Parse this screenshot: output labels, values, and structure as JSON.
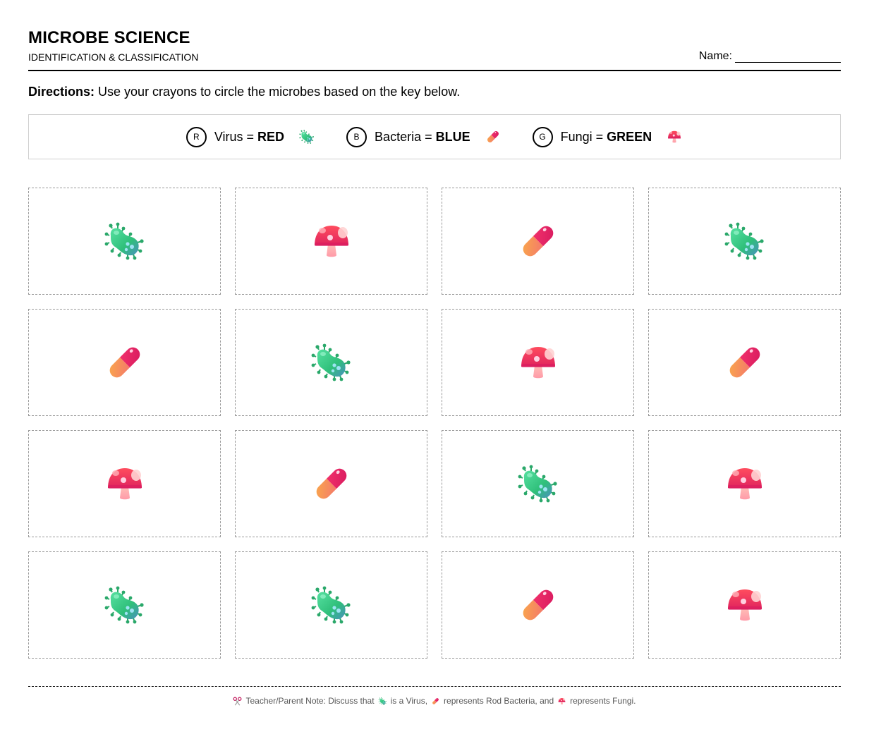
{
  "header": {
    "title": "MICROBE SCIENCE",
    "subtitle": "IDENTIFICATION & CLASSIFICATION",
    "name_label": "Name:"
  },
  "directions": {
    "label": "Directions:",
    "text": " Use your crayons to circle the microbes based on the key below."
  },
  "key": [
    {
      "letter": "R",
      "name": "Virus = ",
      "color_word": "RED",
      "icon": "virus-icon"
    },
    {
      "letter": "B",
      "name": "Bacteria = ",
      "color_word": "BLUE",
      "icon": "bacteria-icon"
    },
    {
      "letter": "G",
      "name": "Fungi = ",
      "color_word": "GREEN",
      "icon": "fungi-icon"
    }
  ],
  "grid": {
    "rows": [
      [
        "virus",
        "fungi",
        "bacteria",
        "virus"
      ],
      [
        "bacteria",
        "virus",
        "fungi",
        "bacteria"
      ],
      [
        "fungi",
        "bacteria",
        "virus",
        "fungi"
      ],
      [
        "virus",
        "virus",
        "bacteria",
        "fungi"
      ]
    ]
  },
  "footer": {
    "icon": "scissors-icon",
    "part1": "Teacher/Parent Note: Discuss that",
    "part2": "is a Virus,",
    "part3": "represents Rod Bacteria, and",
    "part4": "represents Fungi."
  },
  "colors": {
    "virus_green": "#3ecf8e",
    "bacteria_pink": "#e8255f",
    "bacteria_orange": "#f7a04b",
    "fungi_red": "#f03a52",
    "border_dashed": "#999999",
    "key_border": "#cfcfcf"
  }
}
